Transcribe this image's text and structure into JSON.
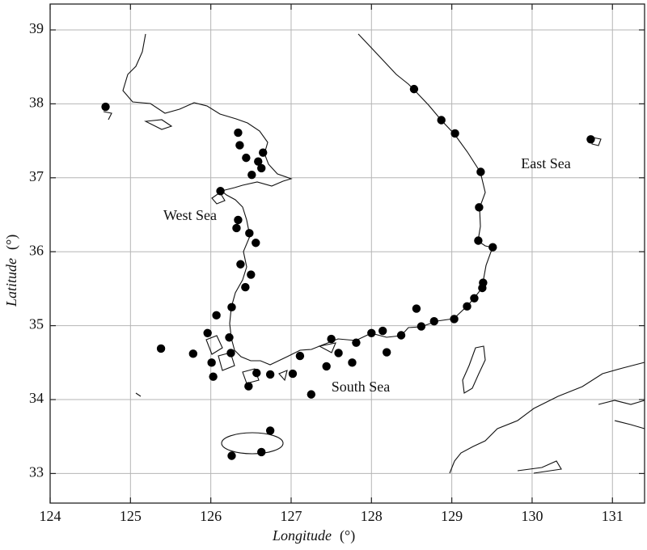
{
  "chart_data": {
    "type": "scatter",
    "xlabel": {
      "name": "Longitude",
      "unit": "(°)"
    },
    "ylabel": {
      "name": "Latitude",
      "unit": "(°)"
    },
    "annotations": [
      "West Sea",
      "East Sea",
      "South Sea"
    ],
    "xlim": [
      124,
      131.4
    ],
    "ylim": [
      32.6,
      39.35
    ],
    "xticks": [
      124,
      125,
      126,
      127,
      128,
      129,
      130,
      131
    ],
    "yticks": [
      33,
      34,
      35,
      36,
      37,
      38,
      39
    ],
    "grid": true,
    "color": "#000000",
    "x": [
      124.69,
      128.53,
      128.87,
      129.04,
      129.36,
      129.34,
      129.33,
      129.51,
      129.39,
      129.38,
      129.28,
      129.19,
      129.03,
      128.78,
      128.62,
      128.56,
      128.37,
      128.19,
      128.14,
      128.0,
      127.81,
      127.76,
      127.59,
      127.5,
      127.44,
      127.11,
      127.02,
      127.25,
      126.74,
      126.57,
      126.47,
      126.74,
      126.63,
      126.26,
      126.03,
      126.01,
      125.96,
      125.78,
      125.38,
      126.07,
      126.26,
      126.25,
      126.23,
      126.43,
      126.5,
      126.37,
      126.56,
      126.48,
      126.32,
      126.34,
      126.12,
      126.51,
      126.63,
      126.59,
      126.44,
      126.65,
      126.36,
      126.34,
      130.73
    ],
    "y": [
      37.96,
      38.2,
      37.78,
      37.6,
      37.08,
      36.6,
      36.15,
      36.06,
      35.58,
      35.51,
      35.37,
      35.26,
      35.09,
      35.06,
      34.99,
      35.23,
      34.87,
      34.64,
      34.93,
      34.9,
      34.77,
      34.5,
      34.63,
      34.82,
      34.45,
      34.59,
      34.35,
      34.07,
      34.34,
      34.36,
      34.18,
      33.58,
      33.29,
      33.24,
      34.31,
      34.5,
      34.9,
      34.62,
      34.69,
      35.14,
      35.25,
      34.63,
      34.84,
      35.52,
      35.69,
      35.83,
      36.12,
      36.25,
      36.32,
      36.43,
      36.82,
      37.04,
      37.13,
      37.22,
      37.27,
      37.34,
      37.44,
      37.61,
      37.52
    ]
  }
}
